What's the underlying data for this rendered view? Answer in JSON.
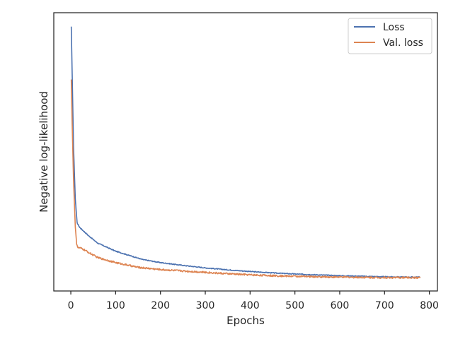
{
  "chart_data": {
    "type": "line",
    "title": "",
    "xlabel": "Epochs",
    "ylabel": "Negative log-likelihood",
    "xlim": [
      -38,
      818
    ],
    "ylim": [
      0.0,
      1.0
    ],
    "y_ticks_visible": false,
    "x_ticks": [
      0,
      100,
      200,
      300,
      400,
      500,
      600,
      700,
      800
    ],
    "x_tick_labels": [
      "0",
      "100",
      "200",
      "300",
      "400",
      "500",
      "600",
      "700",
      "800"
    ],
    "grid": false,
    "legend_position": "top-right",
    "series": [
      {
        "name": "Loss",
        "color": "#4c72b0",
        "x": [
          1,
          3,
          6,
          10,
          14,
          20,
          30,
          40,
          60,
          100,
          160,
          200,
          250,
          300,
          350,
          400,
          450,
          500,
          550,
          600,
          650,
          700,
          750,
          780
        ],
        "y": [
          0.95,
          0.78,
          0.52,
          0.33,
          0.245,
          0.228,
          0.213,
          0.198,
          0.172,
          0.143,
          0.113,
          0.102,
          0.092,
          0.083,
          0.076,
          0.07,
          0.065,
          0.061,
          0.058,
          0.055,
          0.053,
          0.051,
          0.05,
          0.05
        ]
      },
      {
        "name": "Val. loss",
        "color": "#dd8452",
        "x": [
          1,
          3,
          6,
          10,
          13,
          16,
          20,
          30,
          40,
          60,
          100,
          150,
          200,
          250,
          300,
          350,
          400,
          450,
          500,
          550,
          600,
          650,
          700,
          750,
          780
        ],
        "y": [
          0.76,
          0.6,
          0.4,
          0.23,
          0.17,
          0.155,
          0.155,
          0.148,
          0.138,
          0.12,
          0.102,
          0.085,
          0.077,
          0.072,
          0.067,
          0.062,
          0.058,
          0.055,
          0.053,
          0.051,
          0.05,
          0.049,
          0.048,
          0.048,
          0.048
        ]
      }
    ]
  }
}
